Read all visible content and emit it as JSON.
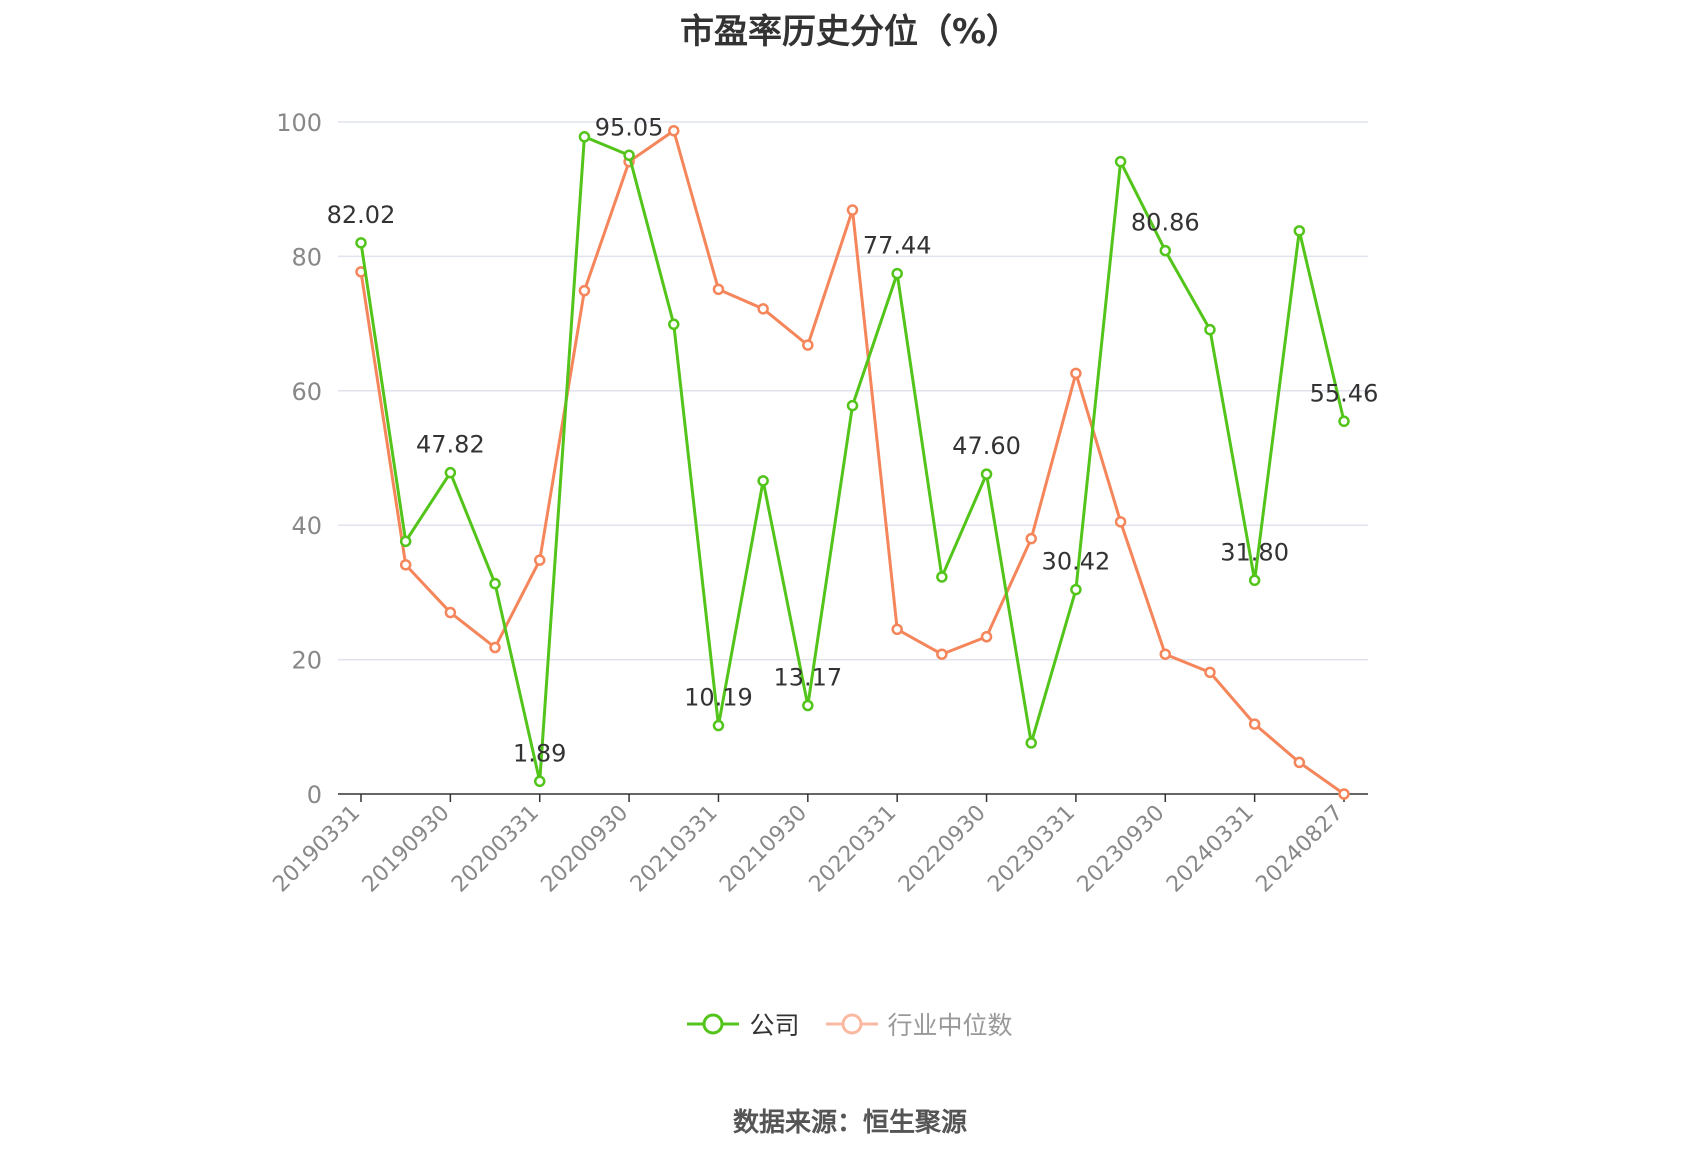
{
  "title": "市盈率历史分位（%）",
  "source_label": "数据来源：恒生聚源",
  "colors": {
    "company": "#52c41a",
    "industry": "#f5855a",
    "grid": "#e0e3ee",
    "axis": "#333333",
    "tick": "#888888",
    "label": "#333333"
  },
  "chart_data": {
    "type": "line",
    "title": "市盈率历史分位（%）",
    "ylim": [
      0,
      100
    ],
    "yticks": [
      0,
      20,
      40,
      60,
      80,
      100
    ],
    "grid": true,
    "legend_position": "bottom-center",
    "categories": [
      "20190331",
      "",
      "20190930",
      "",
      "20200331",
      "",
      "20200930",
      "",
      "20210331",
      "",
      "20210930",
      "",
      "20220331",
      "",
      "20220930",
      "",
      "20230331",
      "",
      "20230930",
      "",
      "20240331",
      "",
      "20240827"
    ],
    "tick_labels": [
      "20190331",
      "20190930",
      "20200331",
      "20200930",
      "20210331",
      "20210930",
      "20220331",
      "20220930",
      "20230331",
      "20230930",
      "20240331",
      "20240827"
    ],
    "series": [
      {
        "name": "公司",
        "key": "company",
        "values": [
          82.02,
          37.6,
          47.82,
          31.3,
          1.89,
          97.8,
          95.05,
          69.9,
          10.19,
          46.6,
          13.17,
          57.8,
          77.44,
          32.3,
          47.6,
          7.6,
          30.42,
          94.1,
          80.86,
          69.1,
          31.8,
          83.8,
          55.46
        ],
        "labels": [
          "82.02",
          "",
          "47.82",
          "",
          "1.89",
          "",
          "95.05",
          "",
          "10.19",
          "",
          "13.17",
          "",
          "77.44",
          "",
          "47.60",
          "",
          "30.42",
          "",
          "80.86",
          "",
          "31.80",
          "",
          "55.46"
        ]
      },
      {
        "name": "行业中位数",
        "key": "industry",
        "values": [
          77.7,
          34.1,
          27.0,
          21.8,
          34.8,
          74.9,
          94.1,
          98.7,
          75.1,
          72.2,
          66.8,
          86.9,
          24.5,
          20.8,
          23.4,
          38.0,
          62.6,
          40.5,
          20.8,
          18.1,
          10.4,
          4.7,
          0.0
        ]
      }
    ]
  }
}
